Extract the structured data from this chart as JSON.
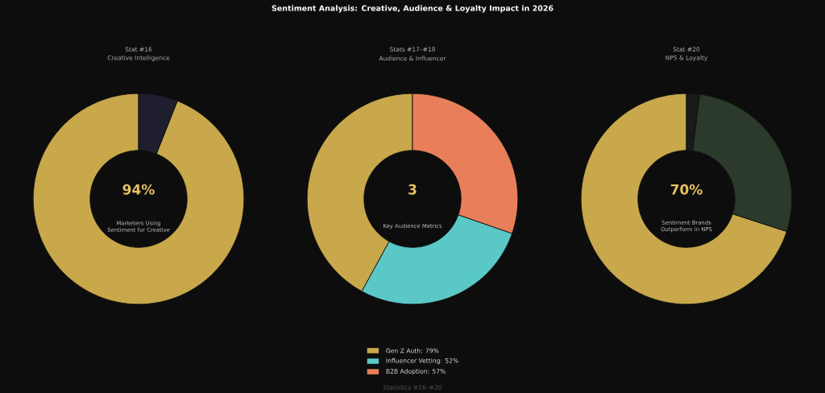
{
  "chart_data": [
    {
      "type": "donut",
      "title": "Stat #16",
      "subtitle": "Creative Intelligence",
      "categories": [
        null,
        null
      ],
      "values": [
        94,
        6
      ],
      "colors": [
        "#c8a84b",
        "#1e1e2e"
      ],
      "annotations": [
        "94%",
        "Marketers Using Sentiment for Creative"
      ]
    },
    {
      "type": "donut",
      "title": "Stats #17–#18",
      "subtitle": "Audience & Influencer",
      "categories": [
        "Gen Z Auth: 79%",
        "Influencer Vetting: 52%",
        "B2B Adoption: 57%"
      ],
      "values": [
        79,
        52,
        57
      ],
      "colors": [
        "#c8a84b",
        "#5bc8c8",
        "#e87f5a"
      ],
      "legend": "bottom",
      "annotations": [
        "3",
        "Key Audience Metrics"
      ]
    },
    {
      "type": "donut",
      "title": "Stat #20",
      "subtitle": "NPS & Loyalty",
      "categories": [
        null,
        null,
        null
      ],
      "values": [
        70,
        28,
        2
      ],
      "colors": [
        "#c8a84b",
        "#2b3a2b",
        "#1a1a1a"
      ],
      "annotations": [
        "70%",
        "Sentiment Brands Outperform in NPS"
      ]
    },
    {
      "type": "other",
      "title": "Sentiment Analysis: Creative, Audience & Loyalty Impact in 2026",
      "annotations": [
        "Statistics #16–#20"
      ]
    }
  ]
}
